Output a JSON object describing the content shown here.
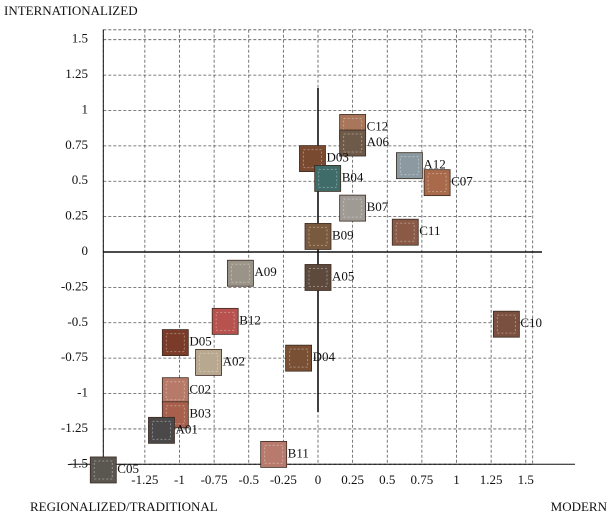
{
  "chart_data": {
    "type": "scatter",
    "y_label": "INTERNATIONALIZED",
    "x_label_left": "REGIONALIZED/TRADITIONAL",
    "x_label_right": "MODERN",
    "labels": [
      "C12",
      "A06",
      "D03",
      "B04",
      "A12",
      "C07",
      "B07",
      "C11",
      "B09",
      "A09",
      "A05",
      "B12",
      "C10",
      "D05",
      "A02",
      "D04",
      "C02",
      "B03",
      "A01",
      "C05",
      "B11"
    ],
    "x": [
      0.25,
      0.25,
      -0.04,
      0.07,
      0.66,
      0.86,
      0.25,
      0.63,
      0,
      -0.56,
      0,
      -0.67,
      1.36,
      -1.03,
      -0.79,
      -0.14,
      -1.03,
      -1.03,
      -1.13,
      -1.55,
      -0.32
    ],
    "values": [
      0.88,
      0.77,
      0.66,
      0.52,
      0.61,
      0.49,
      0.31,
      0.14,
      0.11,
      -0.15,
      -0.18,
      -0.49,
      -0.51,
      -0.64,
      -0.78,
      -0.75,
      -0.98,
      -1.15,
      -1.26,
      -1.54,
      -1.43
    ],
    "colors": [
      "#a8765a",
      "#6e5a48",
      "#7a4a30",
      "#3f6b68",
      "#8a9aa0",
      "#a86a4a",
      "#a09a94",
      "#8a5a46",
      "#7a5a3e",
      "#9a9488",
      "#5e4a3c",
      "#b8524e",
      "#7a5040",
      "#7a3c28",
      "#b8a890",
      "#7a5034",
      "#b87a68",
      "#a8604c",
      "#4a4848",
      "#5a5650",
      "#b87a6c"
    ],
    "xlim": [
      -1.55,
      1.55
    ],
    "ylim": [
      -1.5,
      1.57
    ],
    "xticks": [
      -1.25,
      -1,
      -0.75,
      -0.5,
      -0.25,
      0,
      0.25,
      0.5,
      0.75,
      1,
      1.25,
      1.5
    ],
    "yticks": [
      -1.5,
      -1.25,
      -1,
      -0.75,
      -0.5,
      -0.25,
      0,
      0.25,
      0.5,
      0.75,
      1,
      1.25,
      1.5
    ],
    "grid": true
  }
}
